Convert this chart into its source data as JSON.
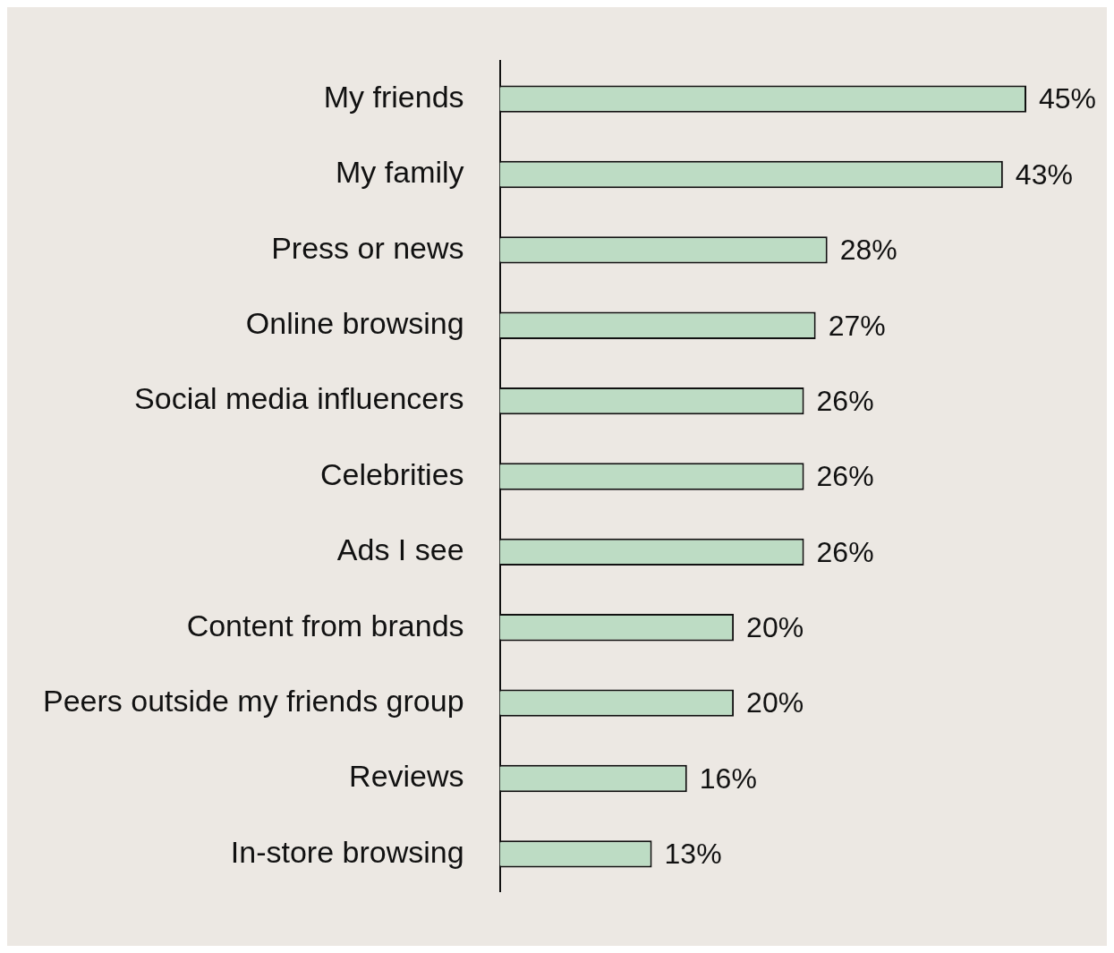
{
  "chart_data": {
    "type": "bar",
    "orientation": "horizontal",
    "categories": [
      "My friends",
      "My family",
      "Press or news",
      "Online browsing",
      "Social media influencers",
      "Celebrities",
      "Ads I see",
      "Content from brands",
      "Peers outside my friends group",
      "Reviews",
      "In-store browsing"
    ],
    "values": [
      45,
      43,
      28,
      27,
      26,
      26,
      26,
      20,
      20,
      16,
      13
    ],
    "value_labels": [
      "45%",
      "43%",
      "28%",
      "27%",
      "26%",
      "26%",
      "26%",
      "20%",
      "20%",
      "16%",
      "13%"
    ],
    "color": "#bddcc4",
    "legend": false
  }
}
